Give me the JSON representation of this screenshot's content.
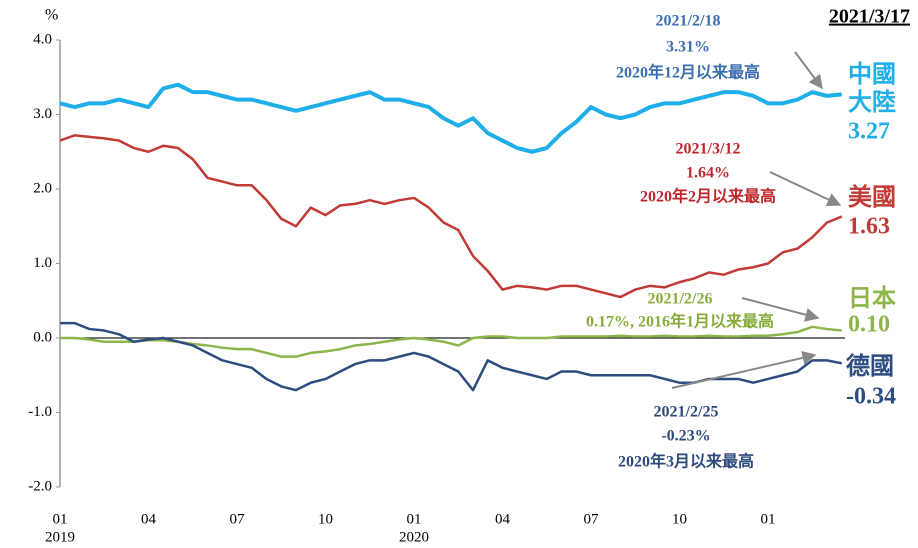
{
  "chart_data": {
    "type": "line",
    "date_label": "2021/3/17",
    "y_unit": "%",
    "categories": [
      "01",
      null,
      null,
      null,
      null,
      null,
      "04",
      null,
      null,
      null,
      null,
      null,
      "07",
      null,
      null,
      null,
      null,
      null,
      "10",
      null,
      null,
      null,
      null,
      null,
      "01",
      null,
      null,
      null,
      null,
      null,
      "04",
      null,
      null,
      null,
      null,
      null,
      "07",
      null,
      null,
      null,
      null,
      null,
      "10",
      null,
      null,
      null,
      null,
      null,
      "01",
      null,
      null,
      null,
      null,
      null
    ],
    "category_years": [
      "2019",
      null,
      null,
      null,
      null,
      null,
      null,
      null,
      null,
      null,
      null,
      null,
      null,
      null,
      null,
      null,
      null,
      null,
      null,
      null,
      null,
      null,
      null,
      null,
      "2020",
      null,
      null,
      null,
      null,
      null,
      null,
      null,
      null,
      null,
      null,
      null,
      null,
      null,
      null,
      null,
      null,
      null,
      null,
      null,
      null,
      null,
      null,
      null,
      null,
      null,
      null,
      null,
      null,
      null
    ],
    "ylim": [
      -2,
      4
    ],
    "yticks": [
      {
        "value": -2,
        "label": "-2.0"
      },
      {
        "value": -1,
        "label": "-1.0"
      },
      {
        "value": 0,
        "label": "0.0"
      },
      {
        "value": 1,
        "label": "1.0"
      },
      {
        "value": 2,
        "label": "2.0"
      },
      {
        "value": 3,
        "label": "3.0"
      },
      {
        "value": 4,
        "label": "4.0"
      }
    ],
    "series": [
      {
        "name": "中國大陸",
        "color": "#1eaeea",
        "values": [
          3.15,
          3.1,
          3.15,
          3.15,
          3.2,
          3.15,
          3.1,
          3.35,
          3.4,
          3.3,
          3.3,
          3.25,
          3.2,
          3.2,
          3.15,
          3.1,
          3.05,
          3.1,
          3.15,
          3.2,
          3.25,
          3.3,
          3.2,
          3.2,
          3.15,
          3.1,
          2.95,
          2.85,
          2.95,
          2.75,
          2.65,
          2.55,
          2.5,
          2.55,
          2.75,
          2.9,
          3.1,
          3.0,
          2.95,
          3.0,
          3.1,
          3.15,
          3.15,
          3.2,
          3.25,
          3.3,
          3.3,
          3.25,
          3.15,
          3.15,
          3.2,
          3.3,
          3.25,
          3.27
        ],
        "value_labels": [
          null,
          null,
          null,
          null,
          null,
          null,
          null,
          null,
          null,
          null,
          null,
          null,
          null,
          null,
          null,
          null,
          null,
          null,
          null,
          null,
          null,
          null,
          null,
          null,
          null,
          null,
          null,
          null,
          null,
          null,
          null,
          null,
          null,
          null,
          null,
          null,
          null,
          null,
          null,
          null,
          null,
          null,
          null,
          null,
          null,
          null,
          null,
          null,
          null,
          null,
          null,
          null,
          null,
          "3.27"
        ]
      },
      {
        "name": "美國",
        "color": "#c23a35",
        "values": [
          2.65,
          2.72,
          2.7,
          2.68,
          2.65,
          2.55,
          2.5,
          2.58,
          2.55,
          2.4,
          2.15,
          2.1,
          2.05,
          2.05,
          1.85,
          1.6,
          1.5,
          1.75,
          1.65,
          1.78,
          1.8,
          1.85,
          1.8,
          1.85,
          1.88,
          1.75,
          1.55,
          1.45,
          1.1,
          0.9,
          0.65,
          0.7,
          0.68,
          0.65,
          0.7,
          0.7,
          0.65,
          0.6,
          0.55,
          0.65,
          0.7,
          0.68,
          0.75,
          0.8,
          0.88,
          0.85,
          0.92,
          0.95,
          1.0,
          1.15,
          1.2,
          1.35,
          1.55,
          1.63
        ],
        "value_labels": [
          null,
          null,
          null,
          null,
          null,
          null,
          null,
          null,
          null,
          null,
          null,
          null,
          null,
          null,
          null,
          null,
          null,
          null,
          null,
          null,
          null,
          null,
          null,
          null,
          null,
          null,
          null,
          null,
          null,
          null,
          null,
          null,
          null,
          null,
          null,
          null,
          null,
          null,
          null,
          null,
          null,
          null,
          null,
          null,
          null,
          null,
          null,
          null,
          null,
          null,
          null,
          null,
          null,
          "1.63"
        ]
      },
      {
        "name": "日本",
        "color": "#8db54a",
        "values": [
          0.0,
          0.0,
          -0.02,
          -0.05,
          -0.05,
          -0.05,
          -0.03,
          -0.03,
          -0.05,
          -0.08,
          -0.1,
          -0.13,
          -0.15,
          -0.15,
          -0.2,
          -0.25,
          -0.25,
          -0.2,
          -0.18,
          -0.15,
          -0.1,
          -0.08,
          -0.05,
          -0.02,
          0.0,
          -0.02,
          -0.05,
          -0.1,
          0.0,
          0.02,
          0.02,
          0.0,
          0.0,
          0.0,
          0.02,
          0.02,
          0.02,
          0.02,
          0.03,
          0.02,
          0.02,
          0.03,
          0.02,
          0.02,
          0.03,
          0.02,
          0.02,
          0.03,
          0.03,
          0.05,
          0.08,
          0.15,
          0.12,
          0.1
        ],
        "value_labels": [
          null,
          null,
          null,
          null,
          null,
          null,
          null,
          null,
          null,
          null,
          null,
          null,
          null,
          null,
          null,
          null,
          null,
          null,
          null,
          null,
          null,
          null,
          null,
          null,
          null,
          null,
          null,
          null,
          null,
          null,
          null,
          null,
          null,
          null,
          null,
          null,
          null,
          null,
          null,
          null,
          null,
          null,
          null,
          null,
          null,
          null,
          null,
          null,
          null,
          null,
          null,
          null,
          null,
          "0.10"
        ]
      },
      {
        "name": "德國",
        "color": "#2d4d80",
        "values": [
          0.2,
          0.2,
          0.12,
          0.1,
          0.05,
          -0.05,
          -0.02,
          0.0,
          -0.05,
          -0.1,
          -0.2,
          -0.3,
          -0.35,
          -0.4,
          -0.55,
          -0.65,
          -0.7,
          -0.6,
          -0.55,
          -0.45,
          -0.35,
          -0.3,
          -0.3,
          -0.25,
          -0.2,
          -0.25,
          -0.35,
          -0.45,
          -0.7,
          -0.3,
          -0.4,
          -0.45,
          -0.5,
          -0.55,
          -0.45,
          -0.45,
          -0.5,
          -0.5,
          -0.5,
          -0.5,
          -0.5,
          -0.55,
          -0.6,
          -0.6,
          -0.55,
          -0.55,
          -0.55,
          -0.6,
          -0.55,
          -0.5,
          -0.45,
          -0.3,
          -0.3,
          -0.34
        ],
        "value_labels": [
          null,
          null,
          null,
          null,
          null,
          null,
          null,
          null,
          null,
          null,
          null,
          null,
          null,
          null,
          null,
          null,
          null,
          null,
          null,
          null,
          null,
          null,
          null,
          null,
          null,
          null,
          null,
          null,
          null,
          null,
          null,
          null,
          null,
          null,
          null,
          null,
          null,
          null,
          null,
          null,
          null,
          null,
          null,
          null,
          null,
          null,
          null,
          null,
          null,
          null,
          null,
          null,
          null,
          "-0.34"
        ]
      }
    ],
    "annotations": [
      {
        "lines": [
          "2021/2/18",
          "3.31%",
          "2020年12月以来最高"
        ],
        "color": "#3b6eae"
      },
      {
        "lines": [
          "2021/3/12",
          "1.64%",
          "2020年2月以来最高"
        ],
        "color": "#c0272d"
      },
      {
        "lines": [
          "2021/2/26",
          "0.17%, 2016年1月以来最高"
        ],
        "color": "#88ac3c"
      },
      {
        "lines": [
          "2021/2/25",
          "-0.23%",
          "2020年3月以来最高"
        ],
        "color": "#2c4a7c"
      }
    ]
  }
}
